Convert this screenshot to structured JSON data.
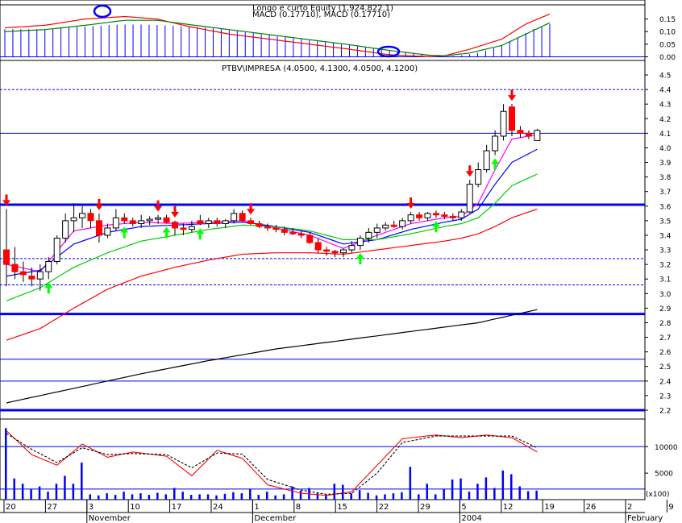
{
  "colors": {
    "background": "#ffffff",
    "frame": "#000000",
    "blue": "#0000ff",
    "red": "#ff0000",
    "magenta": "#ff00ff",
    "green": "#00cc00",
    "dark": "#000000",
    "arrow_down": "#ff0000",
    "arrow_up": "#00ff00"
  },
  "chart_data": [
    {
      "type": "bar",
      "panel": "macd",
      "title": "Longo e curto Equity (1,924,822.1)",
      "subtitle": "MACD (0.17710), MACD (0.17710)",
      "y_ticks": [
        "0.15",
        "0.10",
        "0.05",
        "0.00"
      ],
      "ylim": [
        -0.005,
        0.2
      ],
      "annotations": [
        "blue-circle-early-november",
        "blue-circle-late-december"
      ],
      "series": [
        {
          "name": "",
          "color": "#0000ff",
          "kind": "histogram",
          "values": [
            0.11,
            0.11,
            0.11,
            0.11,
            0.11,
            0.11,
            0.112,
            0.114,
            0.116,
            0.118,
            0.12,
            0.122,
            0.124,
            0.126,
            0.127,
            0.128,
            0.128,
            0.128,
            0.127,
            0.126,
            0.125,
            0.124,
            0.122,
            0.12,
            0.118,
            0.116,
            0.114,
            0.11,
            0.106,
            0.102,
            0.098,
            0.094,
            0.09,
            0.086,
            0.082,
            0.078,
            0.074,
            0.07,
            0.066,
            0.062,
            0.058,
            0.054,
            0.05,
            0.046,
            0.042,
            0.038,
            0.034,
            0.03,
            0.026,
            0.022,
            0.018,
            0.014,
            0.01,
            0.006,
            0.003,
            0.001,
            0.003,
            0.006,
            0.01,
            0.016,
            0.024,
            0.034,
            0.046,
            0.06,
            0.076,
            0.094,
            0.11,
            0.122,
            0.13
          ]
        },
        {
          "name": "",
          "color": "#ff0000",
          "kind": "line",
          "x": [
            0,
            5,
            10,
            15,
            19,
            23,
            28,
            33,
            38,
            43,
            48,
            53,
            55,
            58,
            62,
            65,
            68
          ],
          "values": [
            0.115,
            0.125,
            0.15,
            0.16,
            0.15,
            0.12,
            0.09,
            0.07,
            0.05,
            0.03,
            0.008,
            0.0,
            0.005,
            0.03,
            0.07,
            0.13,
            0.17
          ]
        },
        {
          "name": "",
          "color": "#008000",
          "kind": "line",
          "x": [
            0,
            5,
            10,
            15,
            19,
            23,
            28,
            33,
            38,
            43,
            48,
            53,
            55,
            58,
            62,
            65,
            68
          ],
          "values": [
            0.1,
            0.108,
            0.125,
            0.145,
            0.145,
            0.128,
            0.108,
            0.088,
            0.068,
            0.048,
            0.025,
            0.006,
            0.004,
            0.015,
            0.045,
            0.09,
            0.135
          ]
        }
      ]
    },
    {
      "type": "candlestick",
      "panel": "price",
      "title": "PTBV\\IMPRESA (4.0500, 4.1300, 4.0500, 4.1200)",
      "x_ticks": [
        "20",
        "27",
        "3",
        "10",
        "17",
        "24",
        "1",
        "8",
        "15",
        "22",
        "29",
        "5",
        "12",
        "19",
        "26",
        "2",
        "9"
      ],
      "month_labels": [
        "November",
        "December",
        "2004",
        "February"
      ],
      "y_ticks": [
        "4.5",
        "4.4",
        "4.3",
        "4.2",
        "4.1",
        "4.0",
        "3.9",
        "3.8",
        "3.7",
        "3.6",
        "3.5",
        "3.4",
        "3.3",
        "3.2",
        "3.1",
        "3.0",
        "2.9",
        "2.8",
        "2.7",
        "2.6",
        "2.5",
        "2.4",
        "2.3",
        "2.2"
      ],
      "ylim": [
        2.2,
        4.5
      ],
      "grid": false,
      "horizontal_lines": [
        {
          "value": 4.4,
          "style": "dashed"
        },
        {
          "value": 4.1,
          "style": "solid"
        },
        {
          "value": 3.61,
          "style": "thick"
        },
        {
          "value": 3.24,
          "style": "dashed"
        },
        {
          "value": 3.06,
          "style": "dashed"
        },
        {
          "value": 2.86,
          "style": "thick"
        },
        {
          "value": 2.55,
          "style": "solid"
        },
        {
          "value": 2.4,
          "style": "solid"
        },
        {
          "value": 2.2,
          "style": "thick"
        }
      ],
      "candles": [
        [
          3.3,
          3.58,
          3.05,
          3.2
        ],
        [
          3.2,
          3.32,
          3.1,
          3.15
        ],
        [
          3.15,
          3.22,
          3.08,
          3.13
        ],
        [
          3.12,
          3.18,
          3.05,
          3.1
        ],
        [
          3.1,
          3.2,
          3.02,
          3.15
        ],
        [
          3.15,
          3.25,
          3.1,
          3.22
        ],
        [
          3.22,
          3.4,
          3.2,
          3.38
        ],
        [
          3.38,
          3.55,
          3.35,
          3.5
        ],
        [
          3.5,
          3.62,
          3.42,
          3.52
        ],
        [
          3.52,
          3.6,
          3.45,
          3.55
        ],
        [
          3.55,
          3.58,
          3.45,
          3.5
        ],
        [
          3.5,
          3.55,
          3.35,
          3.4
        ],
        [
          3.4,
          3.48,
          3.38,
          3.45
        ],
        [
          3.45,
          3.58,
          3.43,
          3.52
        ],
        [
          3.52,
          3.55,
          3.48,
          3.5
        ],
        [
          3.5,
          3.52,
          3.46,
          3.48
        ],
        [
          3.48,
          3.54,
          3.45,
          3.5
        ],
        [
          3.5,
          3.53,
          3.47,
          3.51
        ],
        [
          3.51,
          3.54,
          3.48,
          3.52
        ],
        [
          3.52,
          3.54,
          3.48,
          3.49
        ],
        [
          3.49,
          3.5,
          3.4,
          3.45
        ],
        [
          3.45,
          3.48,
          3.4,
          3.44
        ],
        [
          3.44,
          3.5,
          3.42,
          3.46
        ],
        [
          3.5,
          3.54,
          3.47,
          3.48
        ],
        [
          3.48,
          3.52,
          3.45,
          3.5
        ],
        [
          3.5,
          3.52,
          3.46,
          3.48
        ],
        [
          3.48,
          3.51,
          3.45,
          3.5
        ],
        [
          3.5,
          3.58,
          3.48,
          3.55
        ],
        [
          3.55,
          3.57,
          3.49,
          3.5
        ],
        [
          3.5,
          3.52,
          3.47,
          3.48
        ],
        [
          3.48,
          3.5,
          3.45,
          3.46
        ],
        [
          3.46,
          3.48,
          3.43,
          3.45
        ],
        [
          3.45,
          3.47,
          3.42,
          3.44
        ],
        [
          3.44,
          3.46,
          3.4,
          3.42
        ],
        [
          3.42,
          3.45,
          3.4,
          3.41
        ],
        [
          3.41,
          3.43,
          3.38,
          3.4
        ],
        [
          3.4,
          3.42,
          3.34,
          3.35
        ],
        [
          3.35,
          3.38,
          3.28,
          3.3
        ],
        [
          3.3,
          3.32,
          3.26,
          3.29
        ],
        [
          3.29,
          3.3,
          3.25,
          3.28
        ],
        [
          3.28,
          3.31,
          3.25,
          3.3
        ],
        [
          3.3,
          3.36,
          3.28,
          3.33
        ],
        [
          3.33,
          3.4,
          3.3,
          3.38
        ],
        [
          3.38,
          3.45,
          3.35,
          3.42
        ],
        [
          3.42,
          3.48,
          3.38,
          3.45
        ],
        [
          3.45,
          3.49,
          3.43,
          3.47
        ],
        [
          3.47,
          3.5,
          3.45,
          3.46
        ],
        [
          3.46,
          3.52,
          3.44,
          3.5
        ],
        [
          3.5,
          3.56,
          3.48,
          3.54
        ],
        [
          3.54,
          3.56,
          3.5,
          3.52
        ],
        [
          3.52,
          3.56,
          3.5,
          3.55
        ],
        [
          3.55,
          3.57,
          3.52,
          3.54
        ],
        [
          3.54,
          3.56,
          3.51,
          3.53
        ],
        [
          3.53,
          3.55,
          3.5,
          3.52
        ],
        [
          3.52,
          3.58,
          3.5,
          3.56
        ],
        [
          3.56,
          3.78,
          3.55,
          3.75
        ],
        [
          3.75,
          3.9,
          3.73,
          3.85
        ],
        [
          3.85,
          4.02,
          3.83,
          3.98
        ],
        [
          3.98,
          4.12,
          3.95,
          4.08
        ],
        [
          4.08,
          4.3,
          4.05,
          4.25
        ],
        [
          4.28,
          4.3,
          4.08,
          4.12
        ],
        [
          4.12,
          4.15,
          4.07,
          4.1
        ],
        [
          4.1,
          4.12,
          4.06,
          4.08
        ],
        [
          4.05,
          4.13,
          4.05,
          4.12
        ]
      ],
      "series": [
        {
          "name": "",
          "color": "#ff00ff",
          "kind": "line",
          "x": [
            0,
            4,
            8,
            12,
            16,
            20,
            24,
            28,
            32,
            36,
            40,
            44,
            48,
            52,
            54,
            56,
            58,
            60,
            63
          ],
          "values": [
            3.2,
            3.15,
            3.43,
            3.47,
            3.49,
            3.48,
            3.49,
            3.5,
            3.45,
            3.4,
            3.31,
            3.4,
            3.48,
            3.52,
            3.53,
            3.62,
            3.85,
            4.06,
            4.09
          ]
        },
        {
          "name": "",
          "color": "#0000ff",
          "kind": "line",
          "x": [
            0,
            4,
            8,
            12,
            16,
            20,
            24,
            28,
            32,
            36,
            40,
            44,
            48,
            52,
            54,
            56,
            58,
            60,
            63
          ],
          "values": [
            3.12,
            3.16,
            3.34,
            3.42,
            3.46,
            3.47,
            3.48,
            3.49,
            3.46,
            3.42,
            3.34,
            3.37,
            3.44,
            3.49,
            3.51,
            3.58,
            3.75,
            3.9,
            3.99
          ]
        },
        {
          "name": "",
          "color": "#00cc00",
          "kind": "line",
          "x": [
            0,
            4,
            8,
            12,
            16,
            20,
            24,
            28,
            32,
            36,
            40,
            44,
            48,
            52,
            54,
            56,
            58,
            60,
            63
          ],
          "values": [
            2.95,
            3.04,
            3.18,
            3.28,
            3.36,
            3.4,
            3.44,
            3.47,
            3.46,
            3.43,
            3.37,
            3.37,
            3.41,
            3.46,
            3.48,
            3.52,
            3.62,
            3.74,
            3.82
          ]
        },
        {
          "name": "",
          "color": "#ff0000",
          "kind": "line",
          "x": [
            0,
            4,
            8,
            12,
            16,
            20,
            24,
            28,
            32,
            36,
            40,
            44,
            48,
            52,
            54,
            56,
            58,
            60,
            63
          ],
          "values": [
            2.68,
            2.76,
            2.9,
            3.03,
            3.12,
            3.18,
            3.23,
            3.27,
            3.28,
            3.28,
            3.27,
            3.3,
            3.33,
            3.36,
            3.38,
            3.41,
            3.46,
            3.52,
            3.58
          ]
        },
        {
          "name": "",
          "color": "#000000",
          "kind": "line",
          "x": [
            0,
            8,
            16,
            24,
            32,
            40,
            48,
            56,
            63
          ],
          "values": [
            2.25,
            2.35,
            2.45,
            2.54,
            2.62,
            2.68,
            2.74,
            2.8,
            2.89
          ]
        }
      ],
      "sell_arrows_at": [
        0,
        11,
        18,
        20,
        29,
        48,
        55,
        60
      ],
      "buy_arrows_at": [
        5,
        14,
        19,
        23,
        42,
        51,
        58
      ]
    },
    {
      "type": "bar",
      "panel": "volume",
      "y_ticks": [
        "10000",
        "5000"
      ],
      "axis_unit": "(x100)",
      "ylim": [
        0,
        14000
      ],
      "horizontal_lines": [
        {
          "value": 10000
        },
        {
          "value": 2000
        }
      ],
      "volume": [
        13500,
        4000,
        3000,
        2000,
        2500,
        1500,
        3000,
        4500,
        3000,
        7000,
        1000,
        800,
        1200,
        900,
        1500,
        1000,
        1200,
        900,
        1300,
        1000,
        2200,
        1500,
        900,
        1000,
        1000,
        800,
        1100,
        1400,
        1200,
        2000,
        900,
        1500,
        800,
        1000,
        2500,
        1700,
        2200,
        1200,
        900,
        3000,
        2800,
        1200,
        1800,
        1300,
        800,
        1000,
        1200,
        1400,
        6200,
        1000,
        3000,
        1000,
        2000,
        3800,
        4000,
        1500,
        3000,
        4200,
        2200,
        5500,
        4800,
        2500,
        1600,
        1700
      ],
      "series": [
        {
          "name": "",
          "color": "#ff0000",
          "kind": "line",
          "x": [
            0,
            3,
            6,
            9,
            12,
            15,
            19,
            22,
            25,
            28,
            31,
            35,
            38,
            41,
            44,
            47,
            51,
            54,
            57,
            60,
            63
          ],
          "values": [
            13000,
            8500,
            6500,
            10500,
            8000,
            9000,
            8200,
            4500,
            9300,
            7800,
            2800,
            1200,
            800,
            1500,
            6500,
            11500,
            12200,
            11700,
            12200,
            11700,
            9000
          ]
        },
        {
          "name": "",
          "color": "#000000",
          "kind": "line",
          "dashed": true,
          "x": [
            0,
            3,
            6,
            9,
            12,
            15,
            19,
            22,
            25,
            28,
            31,
            35,
            38,
            41,
            44,
            47,
            51,
            54,
            57,
            60,
            63
          ],
          "values": [
            12500,
            9500,
            7000,
            9800,
            8500,
            8700,
            8500,
            6000,
            8800,
            8600,
            3800,
            1800,
            1000,
            1200,
            5000,
            10800,
            12000,
            12000,
            12000,
            12000,
            9800
          ]
        }
      ]
    }
  ]
}
